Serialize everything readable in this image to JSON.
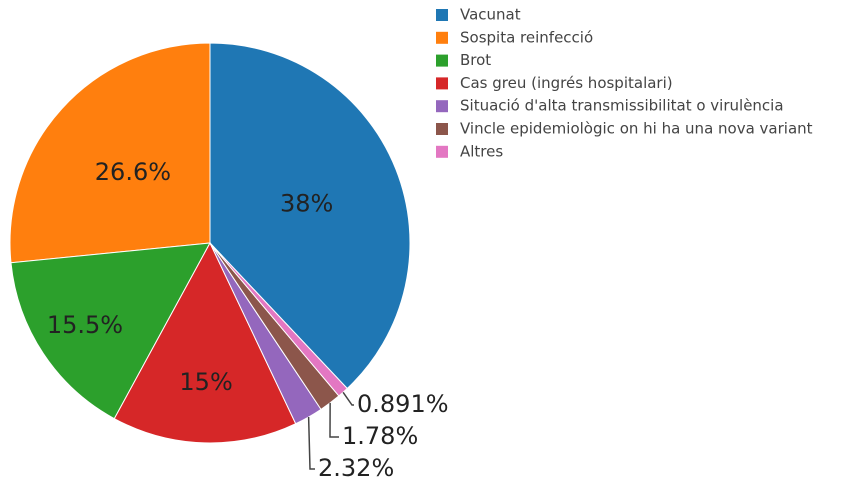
{
  "chart_data": {
    "type": "pie",
    "categories": [
      "Vacunat",
      "Sospita reinfecció",
      "Brot",
      "Cas greu (ingrés hospitalari)",
      "Situació d'alta transmissibilitat o virulència",
      "Vincle epidemiològic on hi ha una nova variant",
      "Altres"
    ],
    "values": [
      38,
      26.6,
      15.5,
      15,
      2.32,
      1.78,
      0.891
    ],
    "value_labels": [
      "38%",
      "26.6%",
      "15.5%",
      "15%",
      "2.32%",
      "1.78%",
      "0.891%"
    ],
    "colors": [
      "#1f77b4",
      "#ff7f0e",
      "#2ca02c",
      "#d62728",
      "#9467bd",
      "#8c564b",
      "#e377c2"
    ],
    "direction": "counterclockwise"
  }
}
